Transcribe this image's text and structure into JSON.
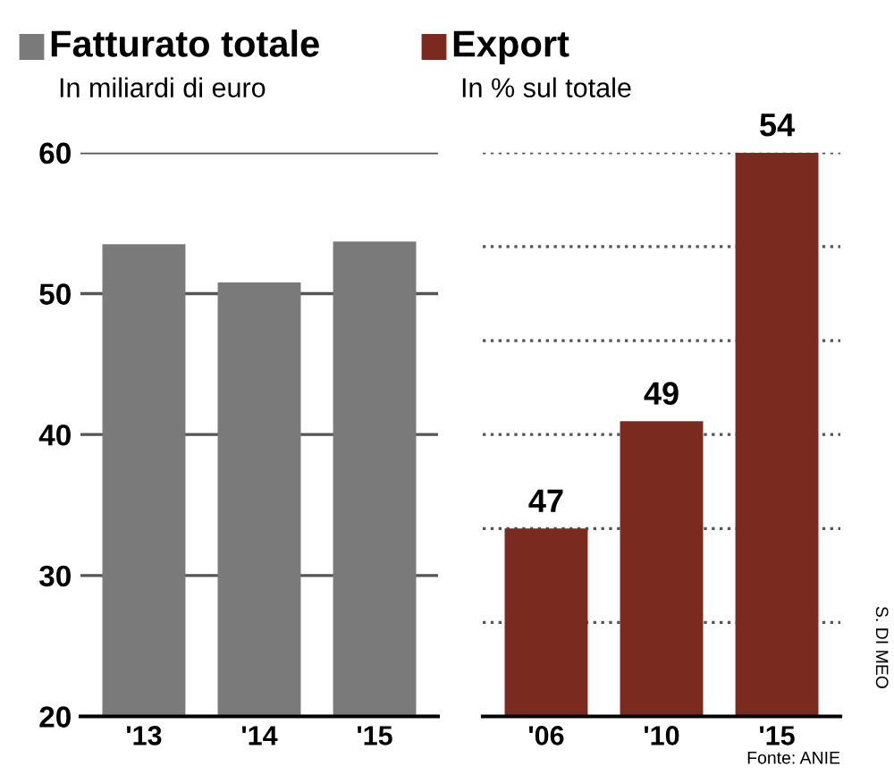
{
  "chart_data": [
    {
      "type": "bar",
      "title": "Fatturato totale",
      "subtitle": "In miliardi di euro",
      "categories": [
        "'13",
        "'14",
        "'15"
      ],
      "series": [
        {
          "color": "#7a7a7a",
          "values": [
            53.5,
            50.8,
            53.7
          ]
        }
      ],
      "ylim": [
        20,
        60
      ],
      "yticks": [
        20,
        30,
        40,
        50,
        60
      ],
      "grid": "y",
      "line_style": "solid"
    },
    {
      "type": "bar",
      "title": "Export",
      "subtitle": "In % sul totale",
      "categories": [
        "'06",
        "'10",
        "'15"
      ],
      "series": [
        {
          "color": "#7a2a1e",
          "values": [
            47,
            49,
            54
          ]
        }
      ],
      "ylim": [
        43.5,
        54
      ],
      "yticks": [
        {
          "value": 45.25,
          "label": null
        },
        {
          "value": 47,
          "label": null
        },
        {
          "value": 48.75,
          "label": null
        },
        {
          "value": 50.5,
          "label": null
        },
        {
          "value": 52.25,
          "label": null
        },
        {
          "value": 54,
          "label": null
        }
      ],
      "grid": "y",
      "line_style": "dotted",
      "data_labels": true,
      "tick_labels": "x",
      "annotations": [
        "Fonte: ANIE",
        "S. DI MEO"
      ]
    }
  ]
}
